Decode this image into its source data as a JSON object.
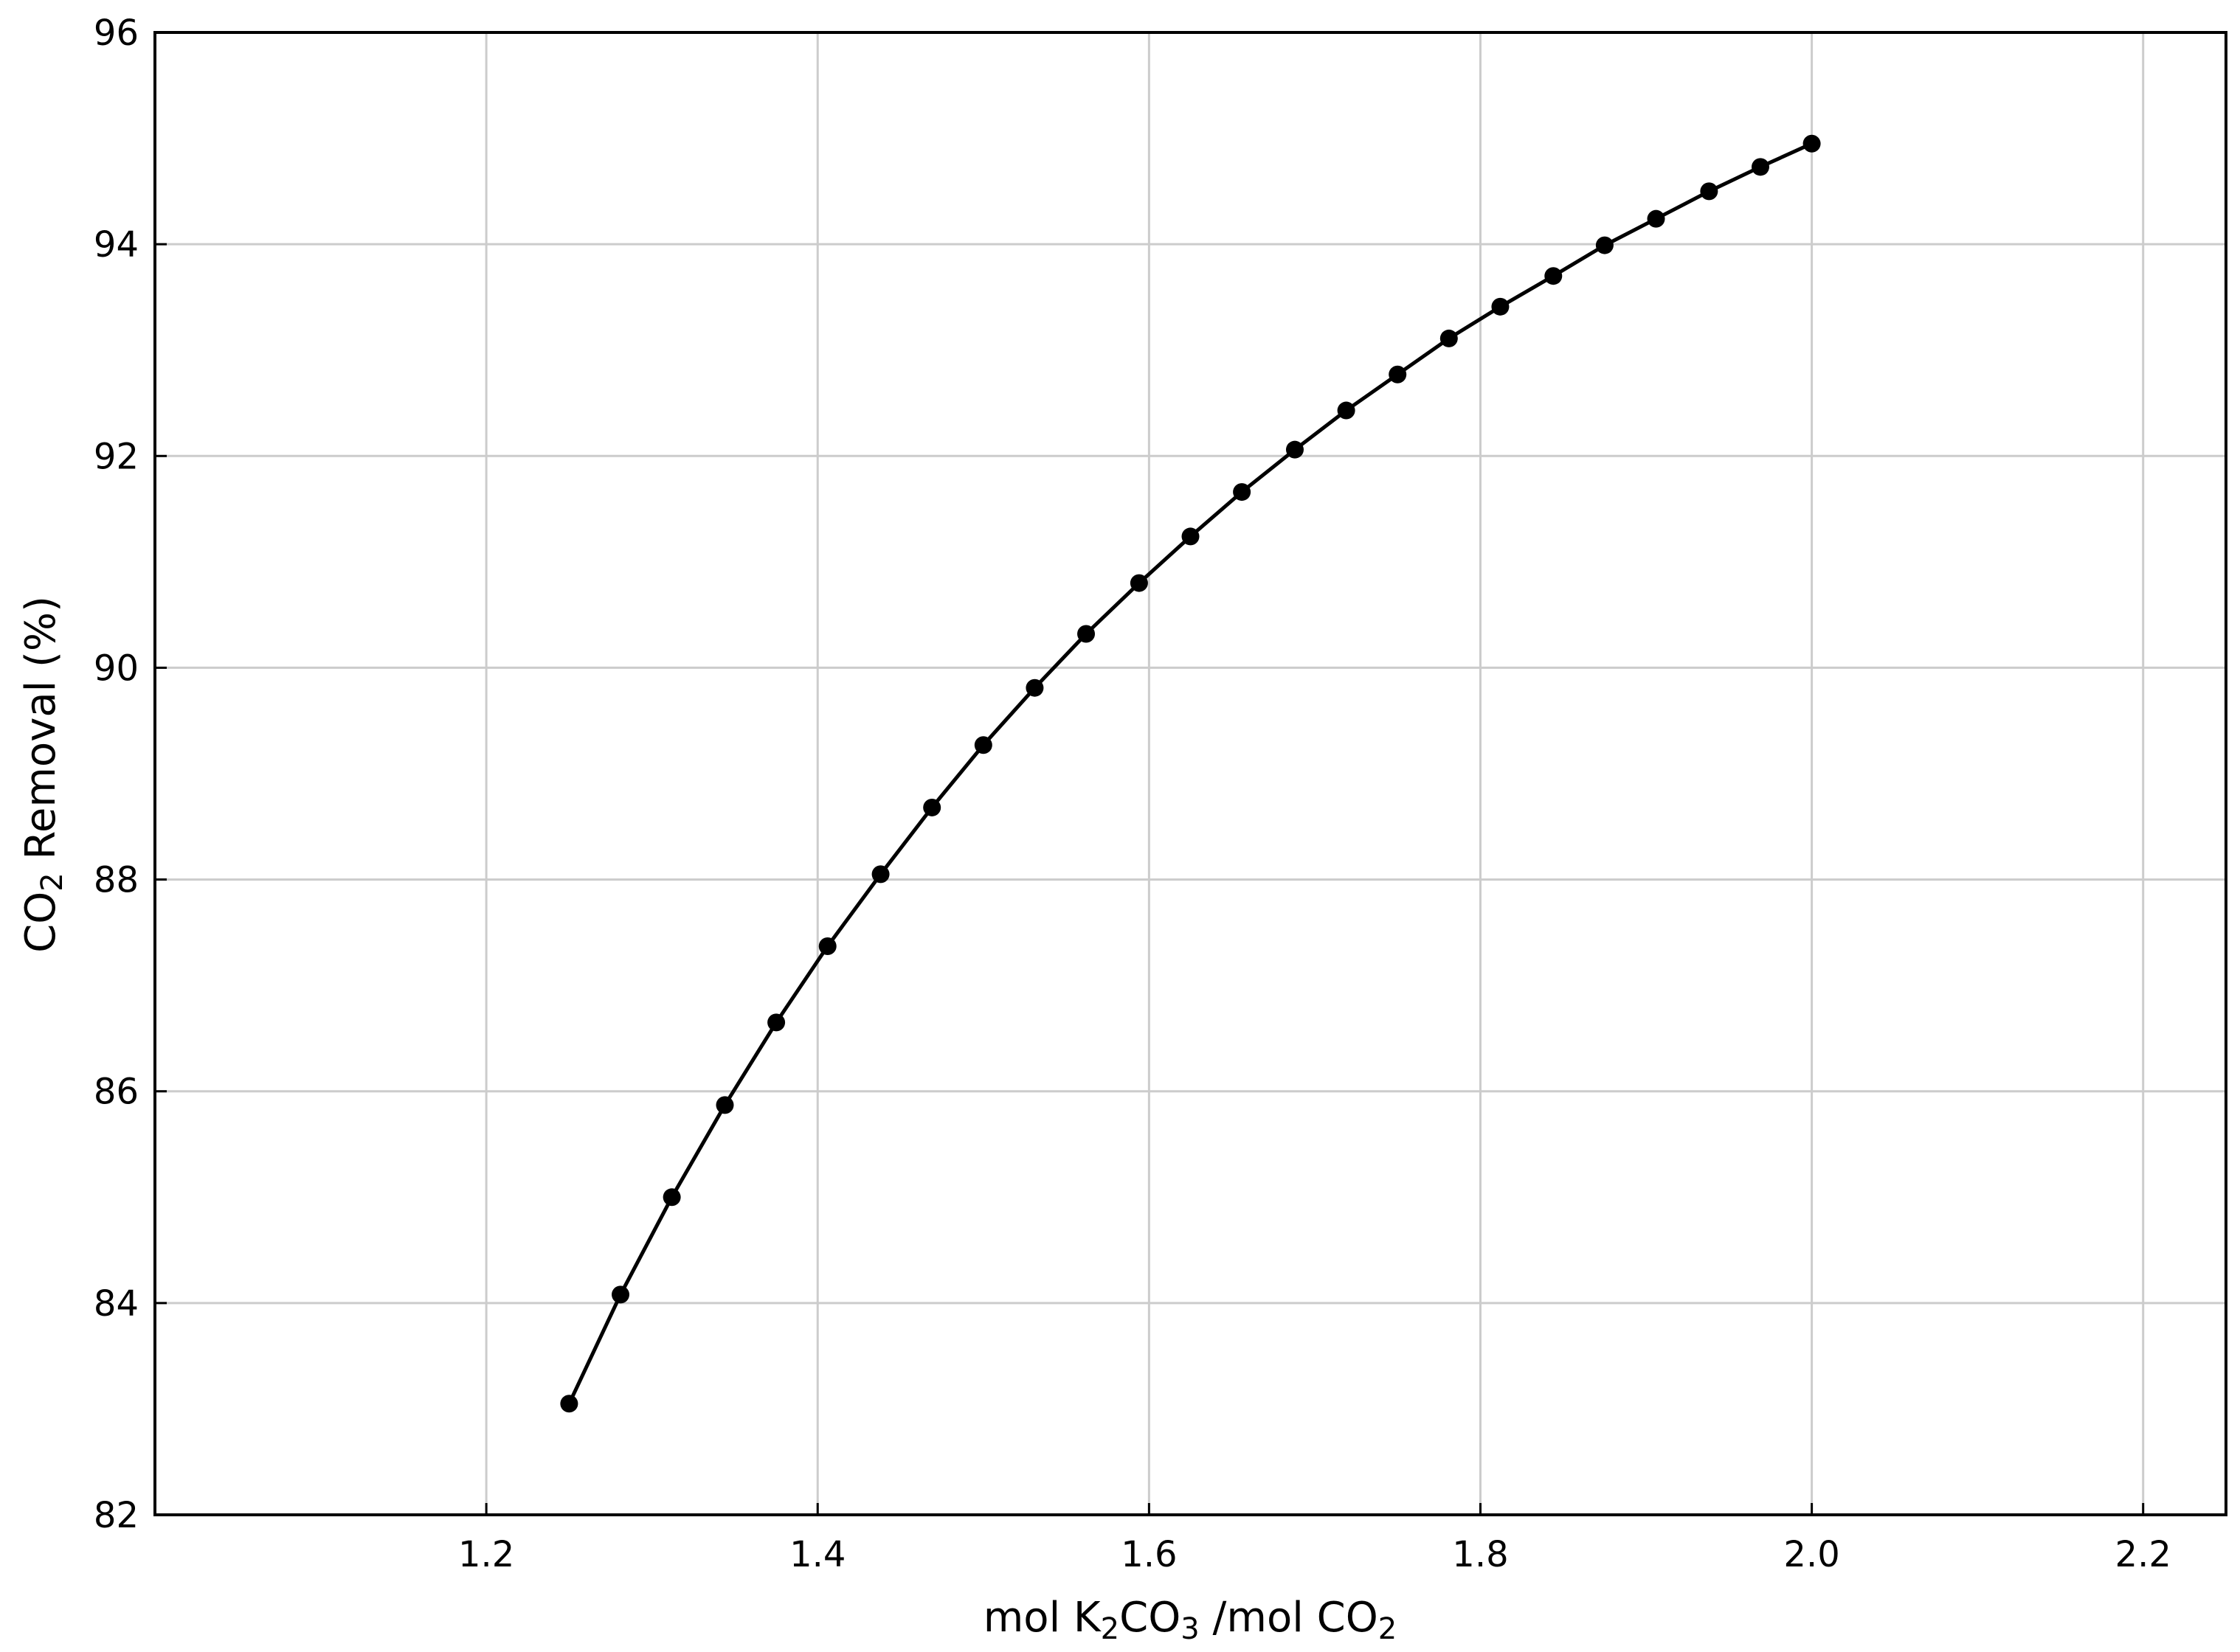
{
  "chart_data": {
    "type": "line",
    "title": "",
    "xlabel": {
      "prefix": "mol K",
      "sub1": "2",
      "mid": "CO",
      "sub2": "3",
      "suffix": " /mol CO",
      "sub3": "2"
    },
    "ylabel": {
      "prefix": "CO",
      "sub": "2",
      "suffix": " Removal (%)"
    },
    "xlim": [
      1.0,
      2.25
    ],
    "ylim": [
      82,
      96
    ],
    "xticks": [
      "1.2",
      "1.4",
      "1.6",
      "1.8",
      "2.0",
      "2.2"
    ],
    "yticks": [
      "82",
      "84",
      "86",
      "88",
      "90",
      "92",
      "94",
      "96"
    ],
    "grid": true,
    "series": [
      {
        "color": "#000000",
        "marker": "circle",
        "x": [
          1.25,
          1.281,
          1.312,
          1.344,
          1.375,
          1.406,
          1.438,
          1.469,
          1.5,
          1.531,
          1.562,
          1.594,
          1.625,
          1.656,
          1.688,
          1.719,
          1.75,
          1.781,
          1.812,
          1.844,
          1.875,
          1.906,
          1.938,
          1.969,
          2.0
        ],
        "y": [
          83.05,
          84.08,
          85.0,
          85.87,
          86.65,
          87.37,
          88.05,
          88.68,
          89.27,
          89.81,
          90.32,
          90.8,
          91.24,
          91.66,
          92.06,
          92.43,
          92.77,
          93.11,
          93.41,
          93.7,
          93.99,
          94.24,
          94.5,
          94.73,
          94.95
        ]
      }
    ]
  }
}
